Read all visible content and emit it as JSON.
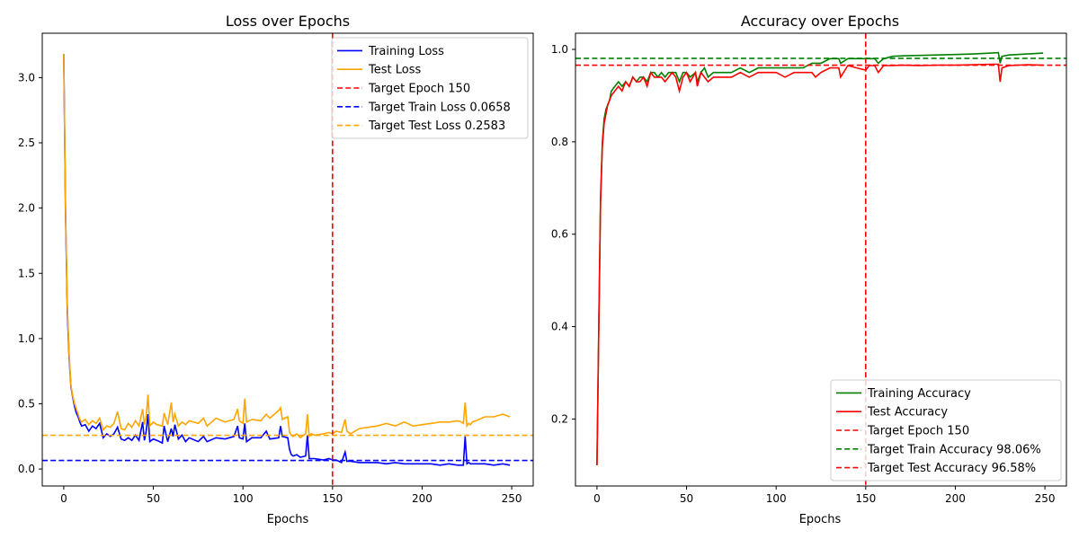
{
  "chart_data": [
    {
      "type": "line",
      "title": "Loss over Epochs",
      "xlabel": "Epochs",
      "ylabel": "",
      "xlim": [
        -12,
        262
      ],
      "ylim": [
        -0.13,
        3.34
      ],
      "xticks": [
        0,
        50,
        100,
        150,
        200,
        250
      ],
      "yticks": [
        0.0,
        0.5,
        1.0,
        1.5,
        2.0,
        2.5,
        3.0
      ],
      "ytick_labels": [
        "0.0",
        "0.5",
        "1.0",
        "1.5",
        "2.0",
        "2.5",
        "3.0"
      ],
      "grid": false,
      "legend_position": "top-right",
      "series": [
        {
          "name": "Training Loss",
          "color": "#0000ff",
          "style": "solid",
          "x": [
            0,
            1,
            2,
            3,
            4,
            5,
            6,
            7,
            8,
            9,
            10,
            12,
            14,
            16,
            18,
            20,
            22,
            24,
            26,
            28,
            30,
            32,
            34,
            36,
            38,
            40,
            42,
            44,
            45,
            46,
            47,
            48,
            50,
            52,
            55,
            56,
            58,
            60,
            61,
            62,
            64,
            66,
            68,
            70,
            75,
            78,
            80,
            85,
            90,
            95,
            97,
            98,
            100,
            101,
            102,
            105,
            110,
            113,
            115,
            120,
            121,
            122,
            125,
            126,
            127,
            128,
            130,
            132,
            135,
            136,
            137,
            138,
            140,
            145,
            148,
            150,
            152,
            155,
            157,
            158,
            160,
            165,
            170,
            175,
            180,
            185,
            190,
            195,
            200,
            205,
            210,
            215,
            220,
            222,
            223,
            224,
            225,
            226,
            227,
            228,
            230,
            235,
            240,
            245,
            249
          ],
          "y": [
            3.18,
            1.95,
            1.2,
            0.85,
            0.63,
            0.55,
            0.48,
            0.43,
            0.4,
            0.36,
            0.33,
            0.34,
            0.29,
            0.33,
            0.31,
            0.35,
            0.24,
            0.27,
            0.25,
            0.27,
            0.32,
            0.23,
            0.22,
            0.24,
            0.22,
            0.26,
            0.22,
            0.36,
            0.22,
            0.29,
            0.42,
            0.21,
            0.23,
            0.22,
            0.2,
            0.33,
            0.21,
            0.31,
            0.25,
            0.34,
            0.23,
            0.26,
            0.21,
            0.24,
            0.21,
            0.25,
            0.21,
            0.24,
            0.23,
            0.25,
            0.33,
            0.24,
            0.23,
            0.35,
            0.21,
            0.24,
            0.24,
            0.29,
            0.23,
            0.24,
            0.33,
            0.25,
            0.24,
            0.15,
            0.11,
            0.1,
            0.11,
            0.09,
            0.1,
            0.26,
            0.08,
            0.08,
            0.08,
            0.07,
            0.08,
            0.07,
            0.07,
            0.05,
            0.13,
            0.06,
            0.06,
            0.05,
            0.05,
            0.05,
            0.04,
            0.05,
            0.04,
            0.04,
            0.04,
            0.04,
            0.03,
            0.04,
            0.03,
            0.03,
            0.03,
            0.25,
            0.04,
            0.05,
            0.04,
            0.04,
            0.04,
            0.04,
            0.03,
            0.04,
            0.03
          ]
        },
        {
          "name": "Test Loss",
          "color": "#ffa500",
          "style": "solid",
          "x": [
            0,
            1,
            2,
            3,
            4,
            5,
            6,
            7,
            8,
            9,
            10,
            12,
            14,
            16,
            18,
            20,
            22,
            24,
            26,
            28,
            30,
            32,
            34,
            36,
            38,
            40,
            42,
            44,
            45,
            46,
            47,
            48,
            50,
            52,
            55,
            56,
            58,
            60,
            61,
            62,
            64,
            66,
            68,
            70,
            75,
            78,
            80,
            85,
            90,
            95,
            97,
            98,
            100,
            101,
            102,
            105,
            110,
            113,
            115,
            120,
            121,
            122,
            125,
            126,
            127,
            128,
            130,
            132,
            135,
            136,
            137,
            138,
            140,
            145,
            148,
            150,
            152,
            155,
            157,
            158,
            160,
            165,
            170,
            175,
            180,
            185,
            190,
            195,
            200,
            205,
            210,
            215,
            220,
            222,
            223,
            224,
            225,
            226,
            227,
            228,
            230,
            235,
            240,
            245,
            249
          ],
          "y": [
            3.18,
            1.98,
            1.25,
            0.88,
            0.64,
            0.56,
            0.5,
            0.46,
            0.42,
            0.38,
            0.36,
            0.38,
            0.34,
            0.37,
            0.35,
            0.39,
            0.3,
            0.33,
            0.32,
            0.35,
            0.44,
            0.31,
            0.3,
            0.35,
            0.32,
            0.37,
            0.33,
            0.46,
            0.34,
            0.4,
            0.57,
            0.33,
            0.36,
            0.34,
            0.33,
            0.43,
            0.34,
            0.51,
            0.36,
            0.42,
            0.33,
            0.36,
            0.34,
            0.37,
            0.35,
            0.39,
            0.33,
            0.39,
            0.36,
            0.38,
            0.46,
            0.37,
            0.35,
            0.54,
            0.36,
            0.38,
            0.37,
            0.42,
            0.39,
            0.45,
            0.47,
            0.38,
            0.4,
            0.28,
            0.26,
            0.25,
            0.27,
            0.24,
            0.27,
            0.42,
            0.25,
            0.27,
            0.26,
            0.27,
            0.28,
            0.27,
            0.29,
            0.28,
            0.38,
            0.29,
            0.27,
            0.31,
            0.32,
            0.33,
            0.35,
            0.33,
            0.36,
            0.33,
            0.34,
            0.35,
            0.36,
            0.36,
            0.37,
            0.36,
            0.35,
            0.51,
            0.33,
            0.35,
            0.34,
            0.36,
            0.37,
            0.4,
            0.4,
            0.42,
            0.4
          ]
        },
        {
          "name": "Target Epoch 150",
          "color": "#ff0000",
          "style": "dashed",
          "vline": 150
        },
        {
          "name": "Target Train Loss 0.0658",
          "color": "#0000ff",
          "style": "dashed",
          "hline": 0.0658
        },
        {
          "name": "Target Test Loss 0.2583",
          "color": "#ffa500",
          "style": "dashed",
          "hline": 0.2583
        }
      ]
    },
    {
      "type": "line",
      "title": "Accuracy over Epochs",
      "xlabel": "Epochs",
      "ylabel": "",
      "xlim": [
        -12,
        262
      ],
      "ylim": [
        0.055,
        1.035
      ],
      "xticks": [
        0,
        50,
        100,
        150,
        200,
        250
      ],
      "yticks": [
        0.2,
        0.4,
        0.6,
        0.8,
        1.0
      ],
      "ytick_labels": [
        "0.2",
        "0.4",
        "0.6",
        "0.8",
        "1.0"
      ],
      "grid": false,
      "legend_position": "bottom-right",
      "series": [
        {
          "name": "Training Accuracy",
          "color": "#008000",
          "style": "solid",
          "x": [
            0,
            1,
            2,
            3,
            4,
            5,
            6,
            7,
            8,
            10,
            12,
            14,
            16,
            18,
            20,
            22,
            24,
            26,
            28,
            30,
            32,
            34,
            36,
            38,
            40,
            42,
            44,
            46,
            48,
            50,
            52,
            55,
            56,
            58,
            60,
            62,
            65,
            70,
            75,
            80,
            85,
            90,
            95,
            100,
            105,
            110,
            115,
            120,
            122,
            125,
            130,
            135,
            136,
            140,
            145,
            150,
            152,
            155,
            157,
            160,
            165,
            170,
            180,
            190,
            200,
            210,
            220,
            224,
            225,
            226,
            230,
            240,
            249
          ],
          "y": [
            0.1,
            0.4,
            0.68,
            0.8,
            0.85,
            0.87,
            0.88,
            0.89,
            0.91,
            0.92,
            0.93,
            0.92,
            0.93,
            0.92,
            0.94,
            0.93,
            0.94,
            0.94,
            0.93,
            0.95,
            0.95,
            0.94,
            0.95,
            0.94,
            0.95,
            0.95,
            0.95,
            0.93,
            0.95,
            0.95,
            0.94,
            0.95,
            0.93,
            0.95,
            0.96,
            0.94,
            0.95,
            0.95,
            0.95,
            0.96,
            0.95,
            0.96,
            0.96,
            0.96,
            0.96,
            0.96,
            0.96,
            0.97,
            0.97,
            0.97,
            0.98,
            0.98,
            0.97,
            0.98,
            0.98,
            0.98,
            0.98,
            0.98,
            0.97,
            0.98,
            0.985,
            0.986,
            0.987,
            0.988,
            0.989,
            0.99,
            0.992,
            0.993,
            0.97,
            0.985,
            0.988,
            0.99,
            0.992
          ]
        },
        {
          "name": "Test Accuracy",
          "color": "#ff0000",
          "style": "solid",
          "x": [
            0,
            1,
            2,
            3,
            4,
            5,
            6,
            7,
            8,
            10,
            12,
            14,
            16,
            18,
            20,
            22,
            24,
            26,
            28,
            30,
            32,
            34,
            36,
            38,
            40,
            42,
            44,
            46,
            48,
            50,
            52,
            55,
            56,
            58,
            60,
            62,
            65,
            70,
            75,
            80,
            85,
            90,
            95,
            100,
            105,
            110,
            115,
            120,
            122,
            125,
            130,
            135,
            136,
            140,
            145,
            150,
            152,
            155,
            157,
            160,
            165,
            170,
            180,
            190,
            200,
            210,
            220,
            224,
            225,
            226,
            230,
            240,
            249
          ],
          "y": [
            0.1,
            0.39,
            0.67,
            0.79,
            0.84,
            0.86,
            0.88,
            0.89,
            0.9,
            0.91,
            0.92,
            0.91,
            0.93,
            0.92,
            0.94,
            0.93,
            0.93,
            0.94,
            0.92,
            0.95,
            0.94,
            0.94,
            0.94,
            0.93,
            0.94,
            0.95,
            0.94,
            0.91,
            0.94,
            0.95,
            0.93,
            0.95,
            0.92,
            0.95,
            0.94,
            0.93,
            0.94,
            0.94,
            0.94,
            0.95,
            0.94,
            0.95,
            0.95,
            0.95,
            0.94,
            0.95,
            0.95,
            0.95,
            0.94,
            0.95,
            0.96,
            0.96,
            0.94,
            0.965,
            0.96,
            0.955,
            0.965,
            0.965,
            0.95,
            0.965,
            0.965,
            0.966,
            0.965,
            0.966,
            0.966,
            0.967,
            0.968,
            0.968,
            0.93,
            0.96,
            0.965,
            0.967,
            0.966
          ]
        },
        {
          "name": "Target Epoch 150",
          "color": "#ff0000",
          "style": "dashed",
          "vline": 150
        },
        {
          "name": "Target Train Accuracy 98.06%",
          "color": "#008000",
          "style": "dashed",
          "hline": 0.9806
        },
        {
          "name": "Target Test Accuracy 96.58%",
          "color": "#ff0000",
          "style": "dashed",
          "hline": 0.9658
        }
      ]
    }
  ]
}
